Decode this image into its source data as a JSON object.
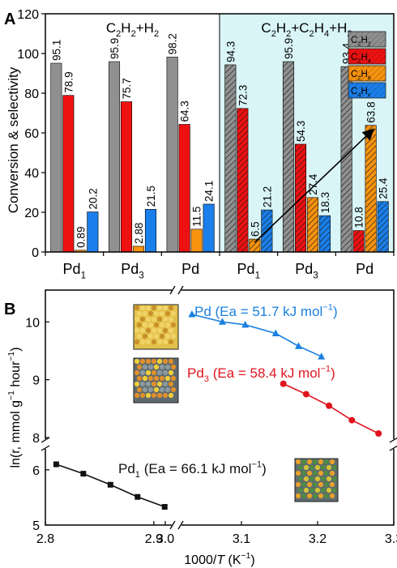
{
  "chart_data": [
    {
      "type": "bar",
      "panel": "A",
      "ylabel": "Conversion & selectivity",
      "ylim": [
        0,
        120
      ],
      "yticks": [
        0,
        20,
        40,
        60,
        80,
        100,
        120
      ],
      "groups": [
        {
          "label_main": "Pd",
          "label_sub": "1",
          "condition": "C2H2+H2",
          "values": [
            95.1,
            78.9,
            0.89,
            20.2
          ],
          "labels": [
            "95.1",
            "78.9",
            "0.89",
            "20.2"
          ]
        },
        {
          "label_main": "Pd",
          "label_sub": "3",
          "condition": "C2H2+H2",
          "values": [
            95.9,
            75.7,
            2.88,
            21.5
          ],
          "labels": [
            "95.9",
            "75.7",
            "2.88",
            "21.5"
          ]
        },
        {
          "label_main": "Pd",
          "label_sub": "",
          "condition": "C2H2+H2",
          "values": [
            98.2,
            64.3,
            11.5,
            24.1
          ],
          "labels": [
            "98.2",
            "64.3",
            "11.5",
            "24.1"
          ]
        },
        {
          "label_main": "Pd",
          "label_sub": "1",
          "condition": "C2H2+C2H4+H2",
          "values": [
            94.3,
            72.3,
            6.5,
            21.2
          ],
          "labels": [
            "94.3",
            "72.3",
            "6.5",
            "21.2"
          ]
        },
        {
          "label_main": "Pd",
          "label_sub": "3",
          "condition": "C2H2+C2H4+H2",
          "values": [
            95.9,
            54.3,
            27.4,
            18.3
          ],
          "labels": [
            "95.9",
            "54.3",
            "27.4",
            "18.3"
          ]
        },
        {
          "label_main": "Pd",
          "label_sub": "",
          "condition": "C2H2+C2H4+H2",
          "values": [
            93.4,
            10.8,
            63.8,
            25.4
          ],
          "labels": [
            "93.4",
            "10.8",
            "63.8",
            "25.4"
          ]
        }
      ],
      "series": [
        {
          "name": "C2H2",
          "color": "#909090"
        },
        {
          "name": "C2H4",
          "color": "#ee1111"
        },
        {
          "name": "C2H6",
          "color": "#f7930e"
        },
        {
          "name": "C4Hx",
          "color": "#1a7fea"
        }
      ],
      "condition_labels": [
        {
          "parts": [
            [
              "C",
              ""
            ],
            [
              "2",
              "sub"
            ],
            [
              "H",
              ""
            ],
            [
              "2",
              "sub"
            ],
            [
              "+H",
              ""
            ],
            [
              "2",
              "sub"
            ]
          ]
        },
        {
          "parts": [
            [
              "C",
              ""
            ],
            [
              "2",
              "sub"
            ],
            [
              "H",
              ""
            ],
            [
              "2",
              "sub"
            ],
            [
              "+C",
              ""
            ],
            [
              "2",
              "sub"
            ],
            [
              "H",
              ""
            ],
            [
              "4",
              "sub"
            ],
            [
              "+H",
              ""
            ],
            [
              "2",
              "sub"
            ]
          ]
        }
      ],
      "legend_position": "top-right",
      "highlight_color": "#d9f5f7",
      "trend_arrow": {
        "from_value": 6.5,
        "to_value": 63.8
      }
    },
    {
      "type": "scatter",
      "panel": "B",
      "xlabel": "1000/T (K⁻¹)",
      "xlabel_parts": [
        [
          "1000/",
          ""
        ],
        [
          "T",
          "italic"
        ],
        [
          " (K",
          ""
        ],
        [
          "−1",
          "sup"
        ],
        [
          ")",
          ""
        ]
      ],
      "ylabel_parts": [
        [
          "ln(r, mmol g",
          ""
        ],
        [
          "−1",
          "sup"
        ],
        [
          " hour",
          ""
        ],
        [
          "−1",
          "sup"
        ],
        [
          ")",
          ""
        ]
      ],
      "x_broken": true,
      "y_broken": true,
      "xticks": [
        2.8,
        2.9,
        3.0,
        3.1,
        3.2,
        3.3
      ],
      "xticks_labels": [
        "2.8",
        "2.9",
        "3.0",
        "3.1",
        "3.2",
        "3.3"
      ],
      "yticks_labels": [
        "5",
        "6",
        "8",
        "9",
        "10"
      ],
      "series": [
        {
          "name": "Pd1",
          "color": "#111111",
          "marker": "square",
          "label_parts": [
            [
              "Pd",
              ""
            ],
            [
              "1",
              "sub"
            ],
            [
              " (Ea = 66.1 kJ mol",
              ""
            ],
            [
              "−1",
              "sup"
            ],
            [
              ")",
              ""
            ]
          ],
          "x": [
            2.81,
            2.835,
            2.86,
            2.885,
            2.91
          ],
          "y": [
            6.1,
            5.93,
            5.73,
            5.51,
            5.33
          ]
        },
        {
          "name": "Pd3",
          "color": "#e0141e",
          "marker": "circle",
          "label_parts": [
            [
              "Pd",
              ""
            ],
            [
              "3",
              "sub"
            ],
            [
              " (Ea = 58.4 kJ mol",
              ""
            ],
            [
              "−1",
              "sup"
            ],
            [
              ")",
              ""
            ]
          ],
          "x": [
            3.155,
            3.185,
            3.215,
            3.245,
            3.28
          ],
          "y": [
            8.93,
            8.75,
            8.55,
            8.3,
            8.07
          ]
        },
        {
          "name": "Pd",
          "color": "#1a80e0",
          "marker": "triangle",
          "label_parts": [
            [
              "Pd (Ea = 51.7 kJ mol",
              ""
            ],
            [
              "−1",
              "sup"
            ],
            [
              ")",
              ""
            ]
          ],
          "x": [
            3.035,
            3.075,
            3.105,
            3.145,
            3.175,
            3.205
          ],
          "y": [
            10.13,
            10.0,
            9.95,
            9.8,
            9.58,
            9.4
          ]
        }
      ]
    }
  ]
}
